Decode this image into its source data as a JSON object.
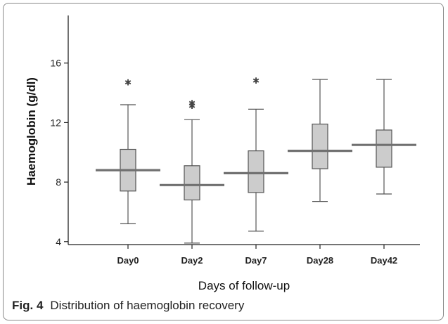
{
  "chart_data": {
    "type": "box",
    "ylabel": "Haemoglobin (g/dl)",
    "xlabel": "Days of follow-up",
    "ylim": [
      3.8,
      19.2
    ],
    "yticks": [
      4,
      8,
      12,
      16
    ],
    "grid": false,
    "categories": [
      "Day0",
      "Day2",
      "Day7",
      "Day28",
      "Day42"
    ],
    "boxes": [
      {
        "category": "Day0",
        "min": 5.2,
        "q1": 7.4,
        "median": 8.8,
        "q3": 10.2,
        "max": 13.2,
        "outliers": [
          14.7
        ]
      },
      {
        "category": "Day2",
        "min": 3.9,
        "q1": 6.8,
        "median": 7.8,
        "q3": 9.1,
        "max": 12.2,
        "outliers": [
          13.1,
          13.3
        ]
      },
      {
        "category": "Day7",
        "min": 4.7,
        "q1": 7.3,
        "median": 8.6,
        "q3": 10.1,
        "max": 12.9,
        "outliers": [
          14.8
        ]
      },
      {
        "category": "Day28",
        "min": 6.7,
        "q1": 8.9,
        "median": 10.1,
        "q3": 11.9,
        "max": 14.9,
        "outliers": []
      },
      {
        "category": "Day42",
        "min": 7.2,
        "q1": 9.0,
        "median": 10.5,
        "q3": 11.5,
        "max": 14.9,
        "outliers": []
      }
    ],
    "box_color": "#cccccc",
    "median_color": "#707070"
  },
  "caption": {
    "label": "Fig. 4",
    "text": "Distribution of haemoglobin recovery"
  }
}
